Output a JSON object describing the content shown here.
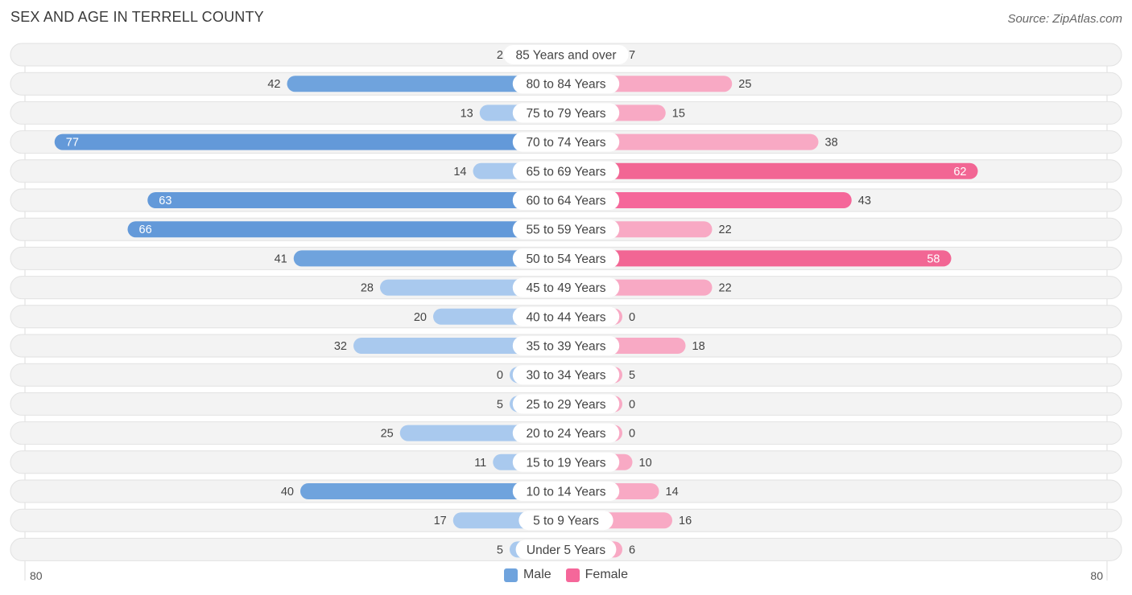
{
  "header": {
    "title": "SEX AND AGE IN TERRELL COUNTY",
    "source": "Source: ZipAtlas.com"
  },
  "colors": {
    "male": "#6fa3dd",
    "male_light": "#a9c9ee",
    "female": "#f5679a",
    "female_light": "#f8a9c4",
    "row_bg": "#f1f1f1"
  },
  "chart_data": {
    "type": "bar",
    "orientation": "horizontal-diverging",
    "title": "SEX AND AGE IN TERRELL COUNTY",
    "categories": [
      "85 Years and over",
      "80 to 84 Years",
      "75 to 79 Years",
      "70 to 74 Years",
      "65 to 69 Years",
      "60 to 64 Years",
      "55 to 59 Years",
      "50 to 54 Years",
      "45 to 49 Years",
      "40 to 44 Years",
      "35 to 39 Years",
      "30 to 34 Years",
      "25 to 29 Years",
      "20 to 24 Years",
      "15 to 19 Years",
      "10 to 14 Years",
      "5 to 9 Years",
      "Under 5 Years"
    ],
    "series": [
      {
        "name": "Male",
        "values": [
          2,
          42,
          13,
          77,
          14,
          63,
          66,
          41,
          28,
          20,
          32,
          0,
          5,
          25,
          11,
          40,
          17,
          5
        ]
      },
      {
        "name": "Female",
        "values": [
          7,
          25,
          15,
          38,
          62,
          43,
          22,
          58,
          22,
          0,
          18,
          5,
          0,
          0,
          10,
          14,
          16,
          6
        ]
      }
    ],
    "xlim": [
      -80,
      80
    ],
    "axis_labels": {
      "left": "80",
      "right": "80"
    },
    "legend": [
      "Male",
      "Female"
    ],
    "legend_position": "bottom-center"
  }
}
